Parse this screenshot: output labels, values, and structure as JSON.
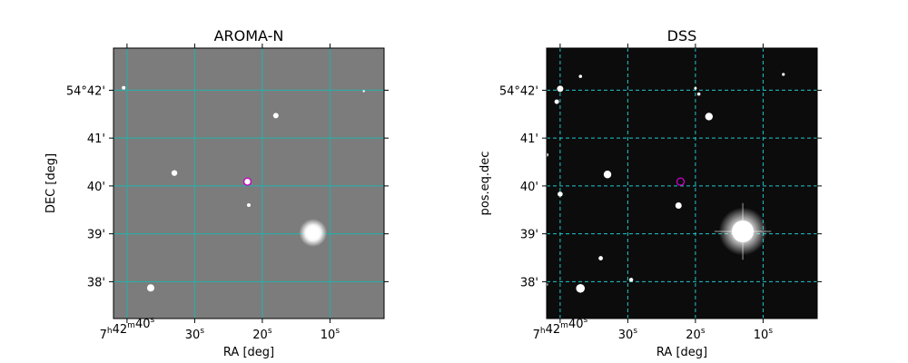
{
  "figure": {
    "panels": [
      {
        "id": "left",
        "title": "AROMA-N",
        "xlabel": "RA [deg]",
        "ylabel": "DEC [deg]",
        "background": "#7c7c7c",
        "grid_color": "#20b2aa",
        "grid_style": "solid",
        "marker_color": "#cc00cc",
        "stars": [
          {
            "ra": "7h42m36.5s",
            "dec": "37.87'",
            "radius": 4.0
          },
          {
            "ra": "7h42m33s",
            "dec": "40.27'",
            "radius": 3.2
          },
          {
            "ra": "7h42m18s",
            "dec": "41.47'",
            "radius": 3.0
          },
          {
            "ra": "7h42m12.5s",
            "dec": "39.02'",
            "radius": 7.0
          },
          {
            "ra": "7h42m22s",
            "dec": "39.60'",
            "radius": 2.0
          },
          {
            "ra": "7h42m40.5s",
            "dec": "42.05'",
            "radius": 2.0
          },
          {
            "ra": "7h42m5s",
            "dec": "41.98'",
            "radius": 1.2
          }
        ],
        "marker": {
          "ra": "7h42m22.2s",
          "dec": "40.09'"
        }
      },
      {
        "id": "right",
        "title": "DSS",
        "xlabel": "RA [deg]",
        "ylabel": "pos.eq.dec",
        "background": "#0c0c0c",
        "grid_color": "#22c5cc",
        "grid_style": "dashed",
        "marker_color": "#cc00cc",
        "stars": [
          {
            "ra": "7h42m40s",
            "dec": "42.03'",
            "radius": 3.5
          },
          {
            "ra": "7h42m40.5s",
            "dec": "41.76'",
            "radius": 2.5
          },
          {
            "ra": "7h42m33s",
            "dec": "40.24'",
            "radius": 4.2
          },
          {
            "ra": "7h42m22.5s",
            "dec": "39.59'",
            "radius": 3.5
          },
          {
            "ra": "7h42m18s",
            "dec": "41.45'",
            "radius": 4.2
          },
          {
            "ra": "7h42m13s",
            "dec": "39.05'",
            "radius": 12.0
          },
          {
            "ra": "7h42m37s",
            "dec": "37.86'",
            "radius": 4.8
          },
          {
            "ra": "7h42m40s",
            "dec": "39.83'",
            "radius": 2.8
          },
          {
            "ra": "7h42m34s",
            "dec": "38.49'",
            "radius": 2.4
          },
          {
            "ra": "7h42m29.5s",
            "dec": "38.04'",
            "radius": 2.2
          },
          {
            "ra": "7h42m42s",
            "dec": "40.65'",
            "radius": 2.0
          },
          {
            "ra": "7h42m37s",
            "dec": "42.29'",
            "radius": 1.8
          },
          {
            "ra": "7h42m19.5s",
            "dec": "41.92'",
            "radius": 1.8
          },
          {
            "ra": "7h42m20s",
            "dec": "42.04'",
            "radius": 1.5
          },
          {
            "ra": "7h42m7s",
            "dec": "42.33'",
            "radius": 1.6
          },
          {
            "ra": "7h42m42s",
            "dec": "37.94'",
            "radius": 1.5
          }
        ],
        "marker": {
          "ra": "7h42m22.2s",
          "dec": "40.09'"
        }
      }
    ],
    "x_ticks": [
      {
        "ra_sec": 40,
        "base": "7",
        "h": "h",
        "min": "42",
        "m": "m",
        "sec": "40",
        "s": "s"
      },
      {
        "ra_sec": 30,
        "base": "",
        "h": "",
        "min": "",
        "m": "",
        "sec": "30",
        "s": "s"
      },
      {
        "ra_sec": 20,
        "base": "",
        "h": "",
        "min": "",
        "m": "",
        "sec": "20",
        "s": "s"
      },
      {
        "ra_sec": 10,
        "base": "",
        "h": "",
        "min": "",
        "m": "",
        "sec": "10",
        "s": "s"
      }
    ],
    "y_ticks": [
      {
        "dec_min": 42,
        "label": "54°42'"
      },
      {
        "dec_min": 41,
        "label": "41'"
      },
      {
        "dec_min": 40,
        "label": "40'"
      },
      {
        "dec_min": 39,
        "label": "39'"
      },
      {
        "dec_min": 38,
        "label": "38'"
      }
    ],
    "ra_range_sec": [
      42.0,
      2.0
    ],
    "dec_range_min": [
      37.23,
      42.88
    ]
  }
}
